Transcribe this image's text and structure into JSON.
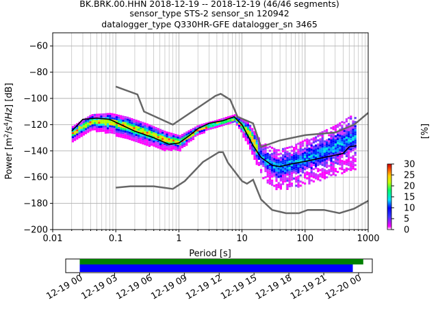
{
  "chart_data": {
    "type": "heatmap",
    "title_lines": [
      "BK.BRK.00.HHN   2018-12-19 -- 2018-12-19  (46/46 segments)",
      "sensor_type STS-2 sensor_sn 120942",
      "datalogger_type Q330HR-GFE datalogger_sn 3465"
    ],
    "xlabel": "Period [s]",
    "ylabel": "Power [m²/s⁴/Hz] [dB]",
    "x_scale": "log",
    "xlim": [
      0.01,
      1000
    ],
    "ylim": [
      -200,
      -50
    ],
    "x_ticks": [
      {
        "v": 0.01,
        "label": "0.01"
      },
      {
        "v": 0.1,
        "label": "0.1"
      },
      {
        "v": 1,
        "label": "1"
      },
      {
        "v": 10,
        "label": "10"
      },
      {
        "v": 100,
        "label": "100"
      },
      {
        "v": 1000,
        "label": "1000"
      }
    ],
    "y_ticks": [
      -60,
      -80,
      -100,
      -120,
      -140,
      -160,
      -180,
      -200
    ],
    "grid": true,
    "colorbar": {
      "label": "[%]",
      "range": [
        0,
        30
      ],
      "ticks": [
        0,
        5,
        10,
        15,
        20,
        25,
        30
      ]
    },
    "noise_model_high": [
      [
        0.1,
        -91
      ],
      [
        0.22,
        -97
      ],
      [
        0.28,
        -110
      ],
      [
        0.8,
        -120
      ],
      [
        3.8,
        -98
      ],
      [
        4.6,
        -96.5
      ],
      [
        6.5,
        -101
      ],
      [
        8.5,
        -114
      ],
      [
        15,
        -119
      ],
      [
        20,
        -137
      ],
      [
        40,
        -132
      ],
      [
        100,
        -128
      ],
      [
        300,
        -126
      ],
      [
        600,
        -120
      ],
      [
        1000,
        -111
      ]
    ],
    "noise_model_low": [
      [
        0.1,
        -168
      ],
      [
        0.17,
        -167
      ],
      [
        0.4,
        -167
      ],
      [
        0.8,
        -169
      ],
      [
        1.24,
        -163
      ],
      [
        2.4,
        -148.5
      ],
      [
        4.3,
        -141
      ],
      [
        5,
        -141
      ],
      [
        6,
        -149
      ],
      [
        10,
        -163
      ],
      [
        12,
        -165
      ],
      [
        15,
        -162
      ],
      [
        20,
        -177
      ],
      [
        30,
        -185
      ],
      [
        50,
        -187.5
      ],
      [
        80,
        -187.5
      ],
      [
        110,
        -185
      ],
      [
        200,
        -185
      ],
      [
        350,
        -187.5
      ],
      [
        600,
        -184
      ],
      [
        1000,
        -178
      ]
    ],
    "median": [
      [
        0.02,
        -125
      ],
      [
        0.03,
        -116
      ],
      [
        0.05,
        -115
      ],
      [
        0.08,
        -116
      ],
      [
        0.12,
        -120
      ],
      [
        0.2,
        -125
      ],
      [
        0.4,
        -130
      ],
      [
        0.7,
        -135
      ],
      [
        1,
        -134
      ],
      [
        1.5,
        -128
      ],
      [
        2,
        -123
      ],
      [
        3,
        -119
      ],
      [
        5,
        -117
      ],
      [
        7.5,
        -114
      ],
      [
        10,
        -120
      ],
      [
        15,
        -136
      ],
      [
        20,
        -145
      ],
      [
        30,
        -151
      ],
      [
        40,
        -152
      ],
      [
        60,
        -150
      ],
      [
        100,
        -148
      ],
      [
        200,
        -145
      ],
      [
        400,
        -142
      ],
      [
        500,
        -137
      ],
      [
        650,
        -136
      ]
    ],
    "percentile_envelope": [
      {
        "p": 0.02,
        "lo": -132,
        "hi": -121
      },
      {
        "p": 0.04,
        "lo": -124,
        "hi": -112
      },
      {
        "p": 0.08,
        "lo": -126,
        "hi": -111
      },
      {
        "p": 0.15,
        "lo": -131,
        "hi": -114
      },
      {
        "p": 0.3,
        "lo": -135,
        "hi": -119
      },
      {
        "p": 0.6,
        "lo": -139,
        "hi": -125
      },
      {
        "p": 1.0,
        "lo": -139,
        "hi": -128
      },
      {
        "p": 2.0,
        "lo": -127,
        "hi": -120
      },
      {
        "p": 4.0,
        "lo": -121,
        "hi": -116
      },
      {
        "p": 7.5,
        "lo": -118,
        "hi": -112
      },
      {
        "p": 12,
        "lo": -134,
        "hi": -118
      },
      {
        "p": 20,
        "lo": -160,
        "hi": -133
      },
      {
        "p": 35,
        "lo": -170,
        "hi": -139
      },
      {
        "p": 60,
        "lo": -168,
        "hi": -136
      },
      {
        "p": 120,
        "lo": -164,
        "hi": -129
      },
      {
        "p": 300,
        "lo": -158,
        "hi": -120
      },
      {
        "p": 650,
        "lo": -153,
        "hi": -110
      }
    ],
    "timeline": {
      "ticks": [
        "12-19 00",
        "12-19 03",
        "12-19 06",
        "12-19 09",
        "12-19 12",
        "12-19 15",
        "12-19 18",
        "12-19 21",
        "12-20 00"
      ],
      "bars": [
        {
          "color": "#008000",
          "start_h": 0,
          "end_h": 24.4
        },
        {
          "color": "#0000ff",
          "start_h": 0,
          "end_h": 23.5
        }
      ]
    }
  },
  "colors": {
    "noise_model": "#666666",
    "median": "#000000",
    "mode": "#cc0000",
    "grid": "#b0b0b0"
  }
}
